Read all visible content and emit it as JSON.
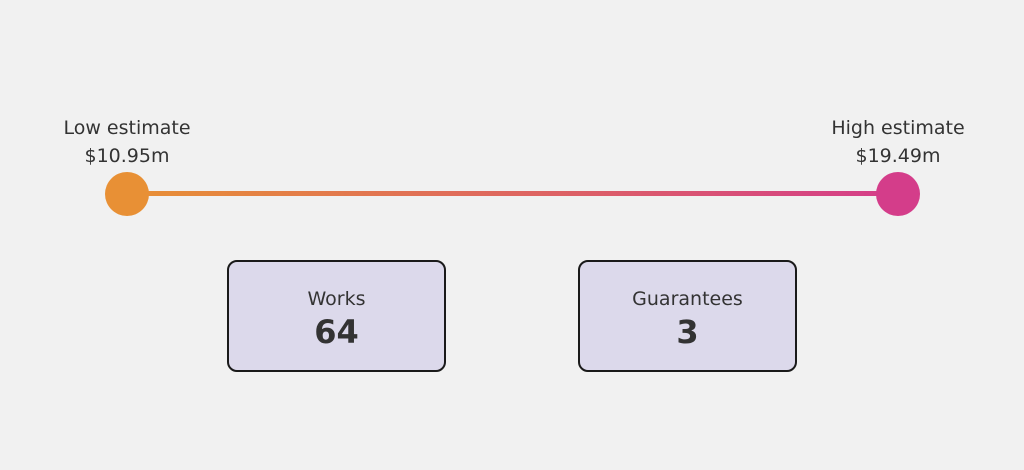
{
  "low": {
    "label": "Low estimate",
    "value": "$10.95m",
    "color": "#e89035"
  },
  "high": {
    "label": "High estimate",
    "value": "$19.49m",
    "color": "#d43d8a"
  },
  "stats": [
    {
      "label": "Works",
      "value": "64"
    },
    {
      "label": "Guarantees",
      "value": "3"
    }
  ]
}
